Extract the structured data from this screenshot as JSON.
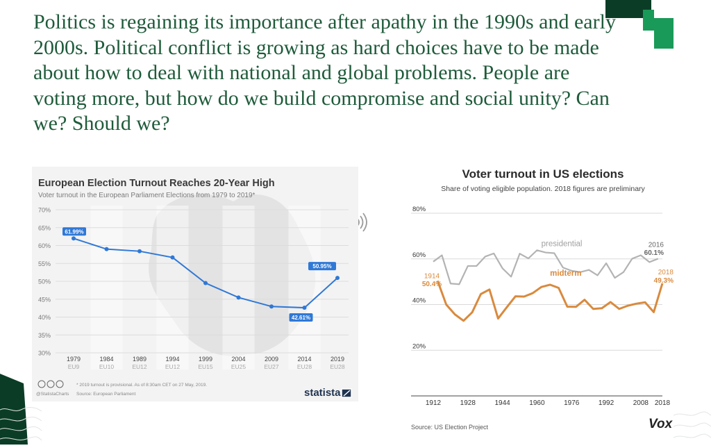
{
  "slide": {
    "title": "Politics is regaining its importance after apathy in the 1990s and early 2000s. Political conflict is growing as hard choices have to be made about how to deal with national and global problems. People are voting more, but how do we build compromise and social unity? Can we? Should we?",
    "accent_colors": [
      "#1e5b3a",
      "#1a9a58",
      "#0b3d26"
    ]
  },
  "speaker_icon": "speaker-audio-icon",
  "chart_data": [
    {
      "type": "line",
      "title": "European Election Turnout Reaches 20-Year High",
      "subtitle": "Voter turnout in the European Parliament Elections from 1979 to 2019*",
      "x": [
        "1979",
        "1984",
        "1989",
        "1994",
        "1999",
        "2004",
        "2009",
        "2014",
        "2019"
      ],
      "x_sublabels": [
        "EU9",
        "EU10",
        "EU12",
        "EU12",
        "EU15",
        "EU25",
        "EU27",
        "EU28",
        "EU28"
      ],
      "values": [
        61.99,
        59.0,
        58.41,
        56.67,
        49.51,
        45.47,
        42.97,
        42.61,
        50.95
      ],
      "value_labels": {
        "first": "61.99%",
        "min": "42.61%",
        "last": "50.95%"
      },
      "yticks": [
        "70%",
        "65%",
        "60%",
        "55%",
        "50%",
        "45%",
        "40%",
        "35%",
        "30%"
      ],
      "ylim": [
        30,
        70
      ],
      "grid": true,
      "color": "#2f78d6",
      "footnote": "* 2019 turnout is provisional. As of 8:30am CET on 27 May, 2019.",
      "handle": "@StatistaCharts",
      "source": "Source: European Parliament",
      "brand": "statista"
    },
    {
      "type": "line",
      "title": "Voter turnout in US elections",
      "subtitle": "Share of voting eligible population. 2018 figures are preliminary",
      "xticks": [
        "1912",
        "1928",
        "1944",
        "1960",
        "1976",
        "1992",
        "2008",
        "2018"
      ],
      "yticks": [
        "80%",
        "60%",
        "40%",
        "20%"
      ],
      "ylim": [
        0,
        85
      ],
      "xlim": [
        1912,
        2018
      ],
      "grid": true,
      "series": [
        {
          "name": "presidential",
          "color": "#b3b3b3",
          "x": [
            1912,
            1916,
            1920,
            1924,
            1928,
            1932,
            1936,
            1940,
            1944,
            1948,
            1952,
            1956,
            1960,
            1964,
            1968,
            1972,
            1976,
            1980,
            1984,
            1988,
            1992,
            1996,
            2000,
            2004,
            2008,
            2012,
            2016
          ],
          "values": [
            58.8,
            61.6,
            49.2,
            48.9,
            56.9,
            56.9,
            61.0,
            62.4,
            55.9,
            52.2,
            62.3,
            60.2,
            63.8,
            62.8,
            62.5,
            56.2,
            54.8,
            54.2,
            55.2,
            52.8,
            58.1,
            51.7,
            54.2,
            60.1,
            61.6,
            58.6,
            60.1
          ],
          "end_label": [
            "2016",
            "60.1%"
          ]
        },
        {
          "name": "midterm",
          "color": "#d98a3d",
          "x": [
            1914,
            1918,
            1922,
            1926,
            1930,
            1934,
            1938,
            1942,
            1946,
            1950,
            1954,
            1958,
            1962,
            1966,
            1970,
            1974,
            1978,
            1982,
            1986,
            1990,
            1994,
            1998,
            2002,
            2006,
            2010,
            2014,
            2018
          ],
          "values": [
            50.4,
            40.0,
            35.7,
            32.9,
            36.6,
            44.6,
            46.6,
            33.9,
            38.8,
            43.6,
            43.5,
            45.0,
            47.7,
            48.7,
            47.3,
            39.1,
            39.0,
            42.1,
            38.1,
            38.4,
            41.1,
            38.1,
            39.5,
            40.4,
            41.0,
            36.7,
            49.3
          ],
          "start_label": [
            "1914",
            "50.4%"
          ],
          "end_label": [
            "2018",
            "49.3%"
          ]
        }
      ],
      "source": "Source: US Election Project",
      "brand": "Vox"
    }
  ]
}
